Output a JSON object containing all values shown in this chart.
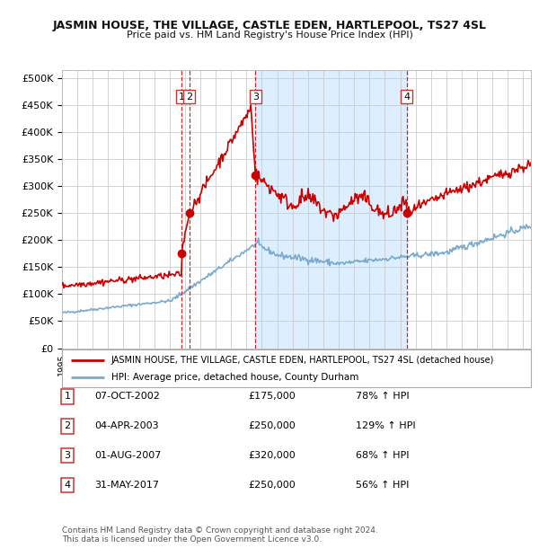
{
  "title": "JASMIN HOUSE, THE VILLAGE, CASTLE EDEN, HARTLEPOOL, TS27 4SL",
  "subtitle": "Price paid vs. HM Land Registry's House Price Index (HPI)",
  "legend_red": "JASMIN HOUSE, THE VILLAGE, CASTLE EDEN, HARTLEPOOL, TS27 4SL (detached house)",
  "legend_blue": "HPI: Average price, detached house, County Durham",
  "transactions": [
    {
      "num": 1,
      "date": "07-OCT-2002",
      "year": 2002.77,
      "price": 175000,
      "pct": "78%",
      "dir": "↑"
    },
    {
      "num": 2,
      "date": "04-APR-2003",
      "year": 2003.27,
      "price": 250000,
      "pct": "129%",
      "dir": "↑"
    },
    {
      "num": 3,
      "date": "01-AUG-2007",
      "year": 2007.58,
      "price": 320000,
      "pct": "68%",
      "dir": "↑"
    },
    {
      "num": 4,
      "date": "31-MAY-2017",
      "year": 2017.42,
      "price": 250000,
      "pct": "56%",
      "dir": "↑"
    }
  ],
  "ylabel_ticks": [
    0,
    50000,
    100000,
    150000,
    200000,
    250000,
    300000,
    350000,
    400000,
    450000,
    500000
  ],
  "ylim": [
    0,
    515000
  ],
  "xstart": 1995,
  "xend": 2025.5,
  "background_color": "#ffffff",
  "plot_bg_color": "#ffffff",
  "shaded_region_color": "#ddeeff",
  "grid_color": "#cccccc",
  "red_line_color": "#cc0000",
  "blue_line_color": "#7aabcf",
  "footnote1": "Contains HM Land Registry data © Crown copyright and database right 2024.",
  "footnote2": "This data is licensed under the Open Government Licence v3.0."
}
